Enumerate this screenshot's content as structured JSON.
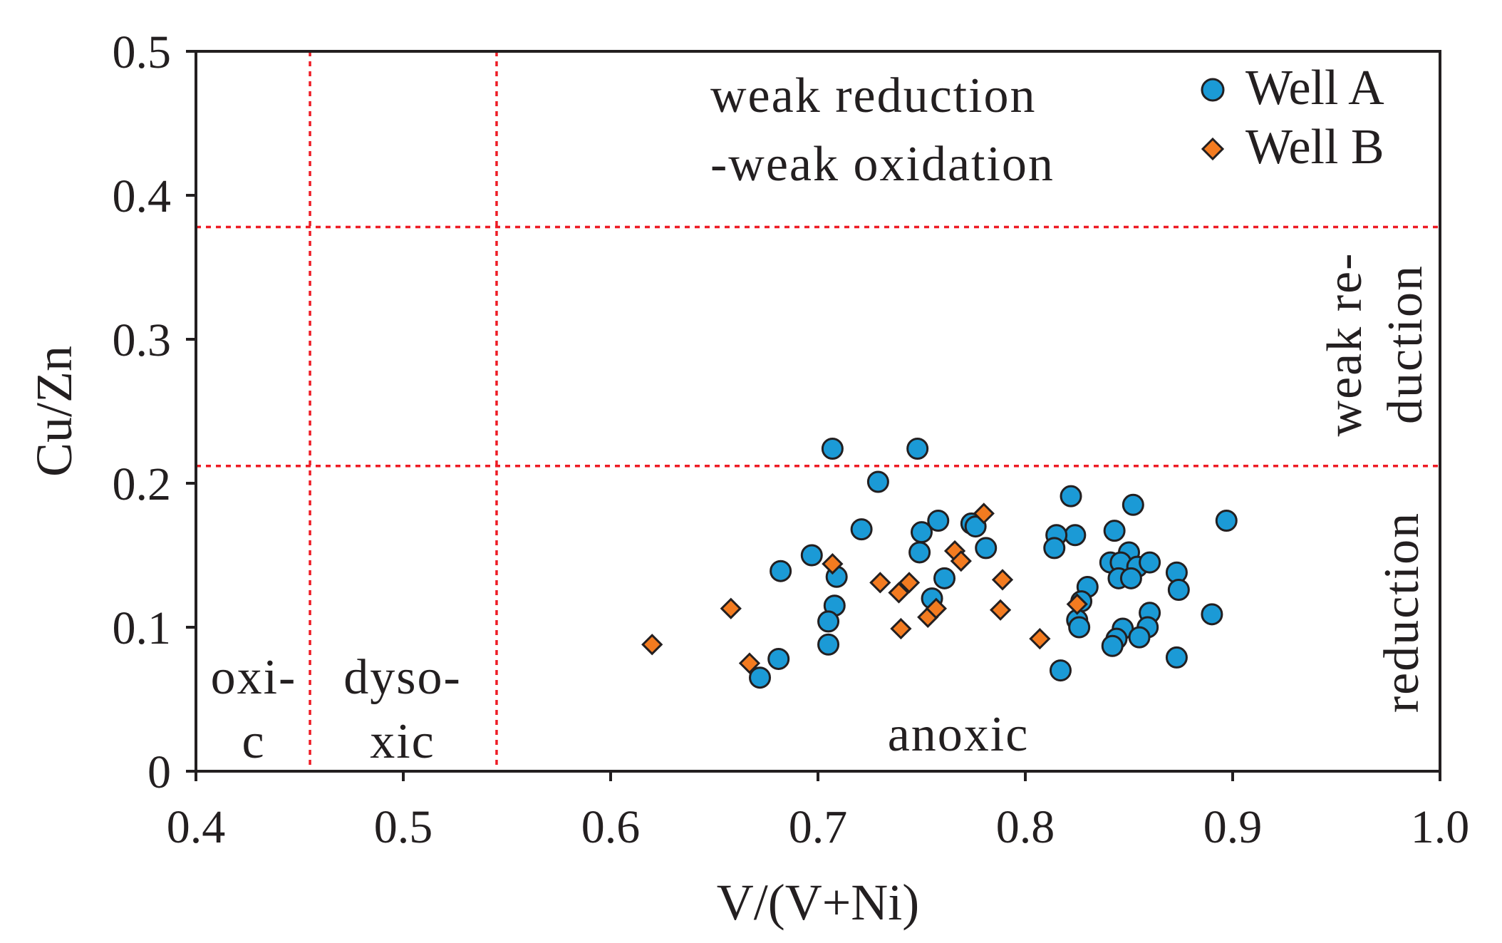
{
  "chart_data": {
    "type": "scatter",
    "xlabel": "V/(V+Ni)",
    "ylabel": "Cu/Zn",
    "xlim": [
      0.4,
      1.0
    ],
    "ylim": [
      0,
      0.5
    ],
    "xticks": [
      "0.4",
      "0.5",
      "0.6",
      "0.7",
      "0.8",
      "0.9",
      "1.0"
    ],
    "yticks": [
      "0",
      "0.1",
      "0.2",
      "0.3",
      "0.4",
      "0.5"
    ],
    "grid": false,
    "legend_position": "top-right",
    "boundaries": {
      "vertical": [
        0.455,
        0.545
      ],
      "horizontal": [
        0.212,
        0.378
      ],
      "color": "#ee1c25"
    },
    "regions": {
      "oxic_line1": "oxi-",
      "oxic_line2": "c",
      "dysoxic_line1": "dyso-",
      "dysoxic_line2": "xic",
      "anoxic": "anoxic",
      "weak_red_ox_line1": "weak reduction",
      "weak_red_ox_line2": "-weak oxidation",
      "weak_red_line1": "weak re-",
      "weak_red_line2": "duction",
      "reduction": "reduction"
    },
    "series": [
      {
        "name": "Well A",
        "marker": "circle",
        "color": "#1b9ad6",
        "points": [
          [
            0.707,
            0.224
          ],
          [
            0.748,
            0.224
          ],
          [
            0.729,
            0.201
          ],
          [
            0.721,
            0.168
          ],
          [
            0.75,
            0.166
          ],
          [
            0.758,
            0.174
          ],
          [
            0.774,
            0.172
          ],
          [
            0.776,
            0.17
          ],
          [
            0.781,
            0.155
          ],
          [
            0.749,
            0.152
          ],
          [
            0.697,
            0.15
          ],
          [
            0.682,
            0.139
          ],
          [
            0.709,
            0.135
          ],
          [
            0.761,
            0.134
          ],
          [
            0.755,
            0.12
          ],
          [
            0.708,
            0.115
          ],
          [
            0.705,
            0.104
          ],
          [
            0.705,
            0.088
          ],
          [
            0.681,
            0.078
          ],
          [
            0.672,
            0.065
          ],
          [
            0.822,
            0.191
          ],
          [
            0.852,
            0.185
          ],
          [
            0.897,
            0.174
          ],
          [
            0.824,
            0.164
          ],
          [
            0.815,
            0.164
          ],
          [
            0.814,
            0.155
          ],
          [
            0.843,
            0.167
          ],
          [
            0.85,
            0.152
          ],
          [
            0.841,
            0.145
          ],
          [
            0.846,
            0.145
          ],
          [
            0.854,
            0.142
          ],
          [
            0.86,
            0.145
          ],
          [
            0.873,
            0.138
          ],
          [
            0.845,
            0.134
          ],
          [
            0.851,
            0.134
          ],
          [
            0.83,
            0.128
          ],
          [
            0.874,
            0.126
          ],
          [
            0.827,
            0.118
          ],
          [
            0.86,
            0.11
          ],
          [
            0.89,
            0.109
          ],
          [
            0.825,
            0.105
          ],
          [
            0.826,
            0.1
          ],
          [
            0.847,
            0.099
          ],
          [
            0.859,
            0.1
          ],
          [
            0.855,
            0.093
          ],
          [
            0.844,
            0.092
          ],
          [
            0.842,
            0.087
          ],
          [
            0.873,
            0.079
          ],
          [
            0.817,
            0.07
          ]
        ]
      },
      {
        "name": "Well B",
        "marker": "diamond",
        "color": "#f37b20",
        "points": [
          [
            0.62,
            0.088
          ],
          [
            0.658,
            0.113
          ],
          [
            0.667,
            0.075
          ],
          [
            0.707,
            0.144
          ],
          [
            0.73,
            0.131
          ],
          [
            0.739,
            0.124
          ],
          [
            0.744,
            0.131
          ],
          [
            0.74,
            0.099
          ],
          [
            0.753,
            0.107
          ],
          [
            0.757,
            0.113
          ],
          [
            0.766,
            0.153
          ],
          [
            0.769,
            0.146
          ],
          [
            0.78,
            0.179
          ],
          [
            0.789,
            0.133
          ],
          [
            0.788,
            0.112
          ],
          [
            0.807,
            0.092
          ],
          [
            0.825,
            0.116
          ]
        ]
      }
    ]
  }
}
